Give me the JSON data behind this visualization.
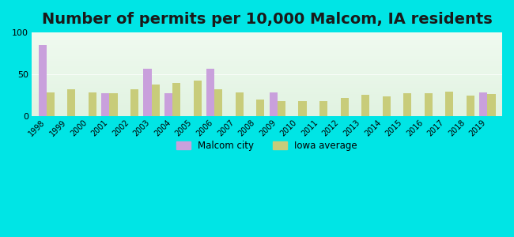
{
  "title": "Number of permits per 10,000 Malcom, IA residents",
  "years": [
    1998,
    1999,
    2000,
    2001,
    2002,
    2003,
    2004,
    2005,
    2006,
    2007,
    2008,
    2009,
    2010,
    2011,
    2012,
    2013,
    2014,
    2015,
    2016,
    2017,
    2018,
    2019
  ],
  "malcom": [
    85,
    0,
    0,
    27,
    0,
    57,
    27,
    0,
    57,
    0,
    0,
    28,
    0,
    0,
    0,
    0,
    0,
    0,
    0,
    0,
    0,
    28
  ],
  "iowa": [
    28,
    32,
    28,
    27,
    32,
    38,
    40,
    42,
    32,
    28,
    20,
    18,
    18,
    18,
    22,
    25,
    23,
    27,
    27,
    29,
    24,
    26
  ],
  "malcom_color": "#c9a0dc",
  "iowa_color": "#c8cc7a",
  "ylim": [
    0,
    100
  ],
  "yticks": [
    0,
    50,
    100
  ],
  "bg_outer": "#00e5e5",
  "bg_inner_top": "#e8f5e0",
  "bg_inner_bottom": "#f0f8e8",
  "title_fontsize": 14,
  "bar_width": 0.38,
  "legend_malcom": "Malcom city",
  "legend_iowa": "Iowa average"
}
